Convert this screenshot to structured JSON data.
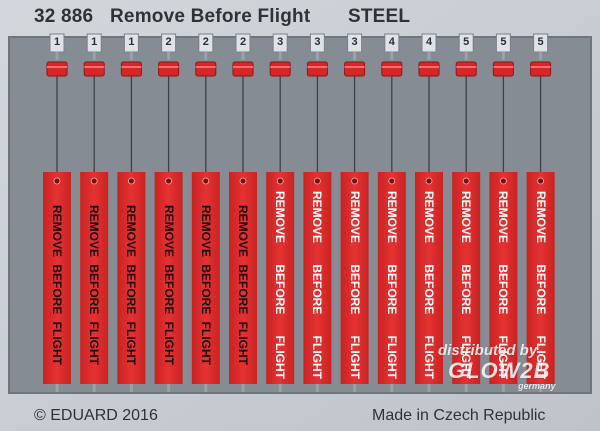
{
  "header": {
    "set_number": "32 886",
    "title": "Remove Before Flight",
    "material": "STEEL"
  },
  "footer": {
    "copyright": "© EDUARD 2016",
    "origin": "Made in Czech Republic"
  },
  "watermark": {
    "line1": "distributed by",
    "logo": "GLOW2B",
    "line3": "germany"
  },
  "colors": {
    "fret": "#c8cdd3",
    "rail": "#8a9199",
    "tag_red": "#e02b2b",
    "text_dark": "#2f3336"
  },
  "tags": [
    {
      "num": "1",
      "words": [
        "REMOVE",
        "BEFORE",
        "FLIGHT"
      ],
      "style": "dark"
    },
    {
      "num": "1",
      "words": [
        "REMOVE",
        "BEFORE",
        "FLIGHT"
      ],
      "style": "dark"
    },
    {
      "num": "1",
      "words": [
        "REMOVE",
        "BEFORE",
        "FLIGHT"
      ],
      "style": "dark"
    },
    {
      "num": "2",
      "words": [
        "REMOVE",
        "BEFORE",
        "FLIGHT"
      ],
      "style": "dark"
    },
    {
      "num": "2",
      "words": [
        "REMOVE",
        "BEFORE",
        "FLIGHT"
      ],
      "style": "dark"
    },
    {
      "num": "2",
      "words": [
        "REMOVE",
        "BEFORE",
        "FLIGHT"
      ],
      "style": "dark"
    },
    {
      "num": "3",
      "words": [
        "REMOVE",
        "BEFORE",
        "FLIGHT"
      ],
      "style": "light"
    },
    {
      "num": "3",
      "words": [
        "REMOVE",
        "BEFORE",
        "FLIGHT"
      ],
      "style": "light"
    },
    {
      "num": "3",
      "words": [
        "REMOVE",
        "BEFORE",
        "FLIGHT"
      ],
      "style": "light"
    },
    {
      "num": "4",
      "words": [
        "REMOVE",
        "BEFORE",
        "FLIGHT"
      ],
      "style": "light"
    },
    {
      "num": "4",
      "words": [
        "REMOVE",
        "BEFORE",
        "FLIGHT"
      ],
      "style": "light"
    },
    {
      "num": "5",
      "words": [
        "REMOVE",
        "BEFORE",
        "FLIGHT"
      ],
      "style": "light"
    },
    {
      "num": "5",
      "words": [
        "REMOVE",
        "BEFORE",
        "FLIGHT"
      ],
      "style": "light"
    },
    {
      "num": "5",
      "words": [
        "REMOVE",
        "BEFORE",
        "FLIGHT"
      ],
      "style": "light"
    }
  ]
}
